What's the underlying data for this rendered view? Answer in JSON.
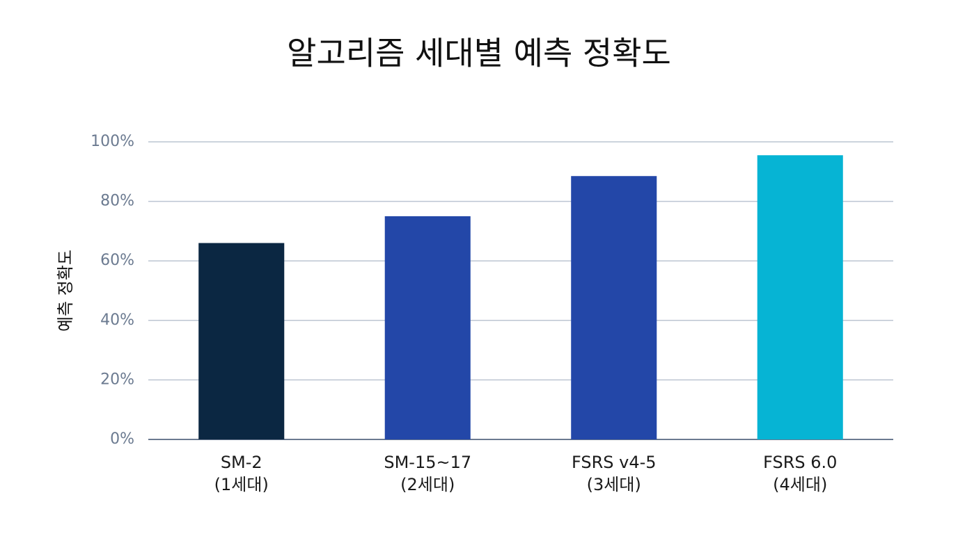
{
  "chart_data": {
    "type": "bar",
    "title": "알고리즘 세대별 예측 정확도",
    "y_label": "예측 정확도",
    "categories": [
      [
        "SM-2",
        "(1세대)"
      ],
      [
        "SM-15~17",
        "(2세대)"
      ],
      [
        "FSRS v4-5",
        "(3세대)"
      ],
      [
        "FSRS 6.0",
        "(4세대)"
      ]
    ],
    "values": [
      66,
      75,
      88.5,
      95.5
    ],
    "colors": [
      "#0b2742",
      "#2347a8",
      "#2347a8",
      "#06b4d4"
    ],
    "ylim": [
      0,
      100
    ],
    "yticks": [
      {
        "value": 0,
        "label": "0%"
      },
      {
        "value": 20,
        "label": "20%"
      },
      {
        "value": 40,
        "label": "40%"
      },
      {
        "value": 60,
        "label": "60%"
      },
      {
        "value": 80,
        "label": "80%"
      },
      {
        "value": 100,
        "label": "100%"
      }
    ],
    "grid": true
  }
}
